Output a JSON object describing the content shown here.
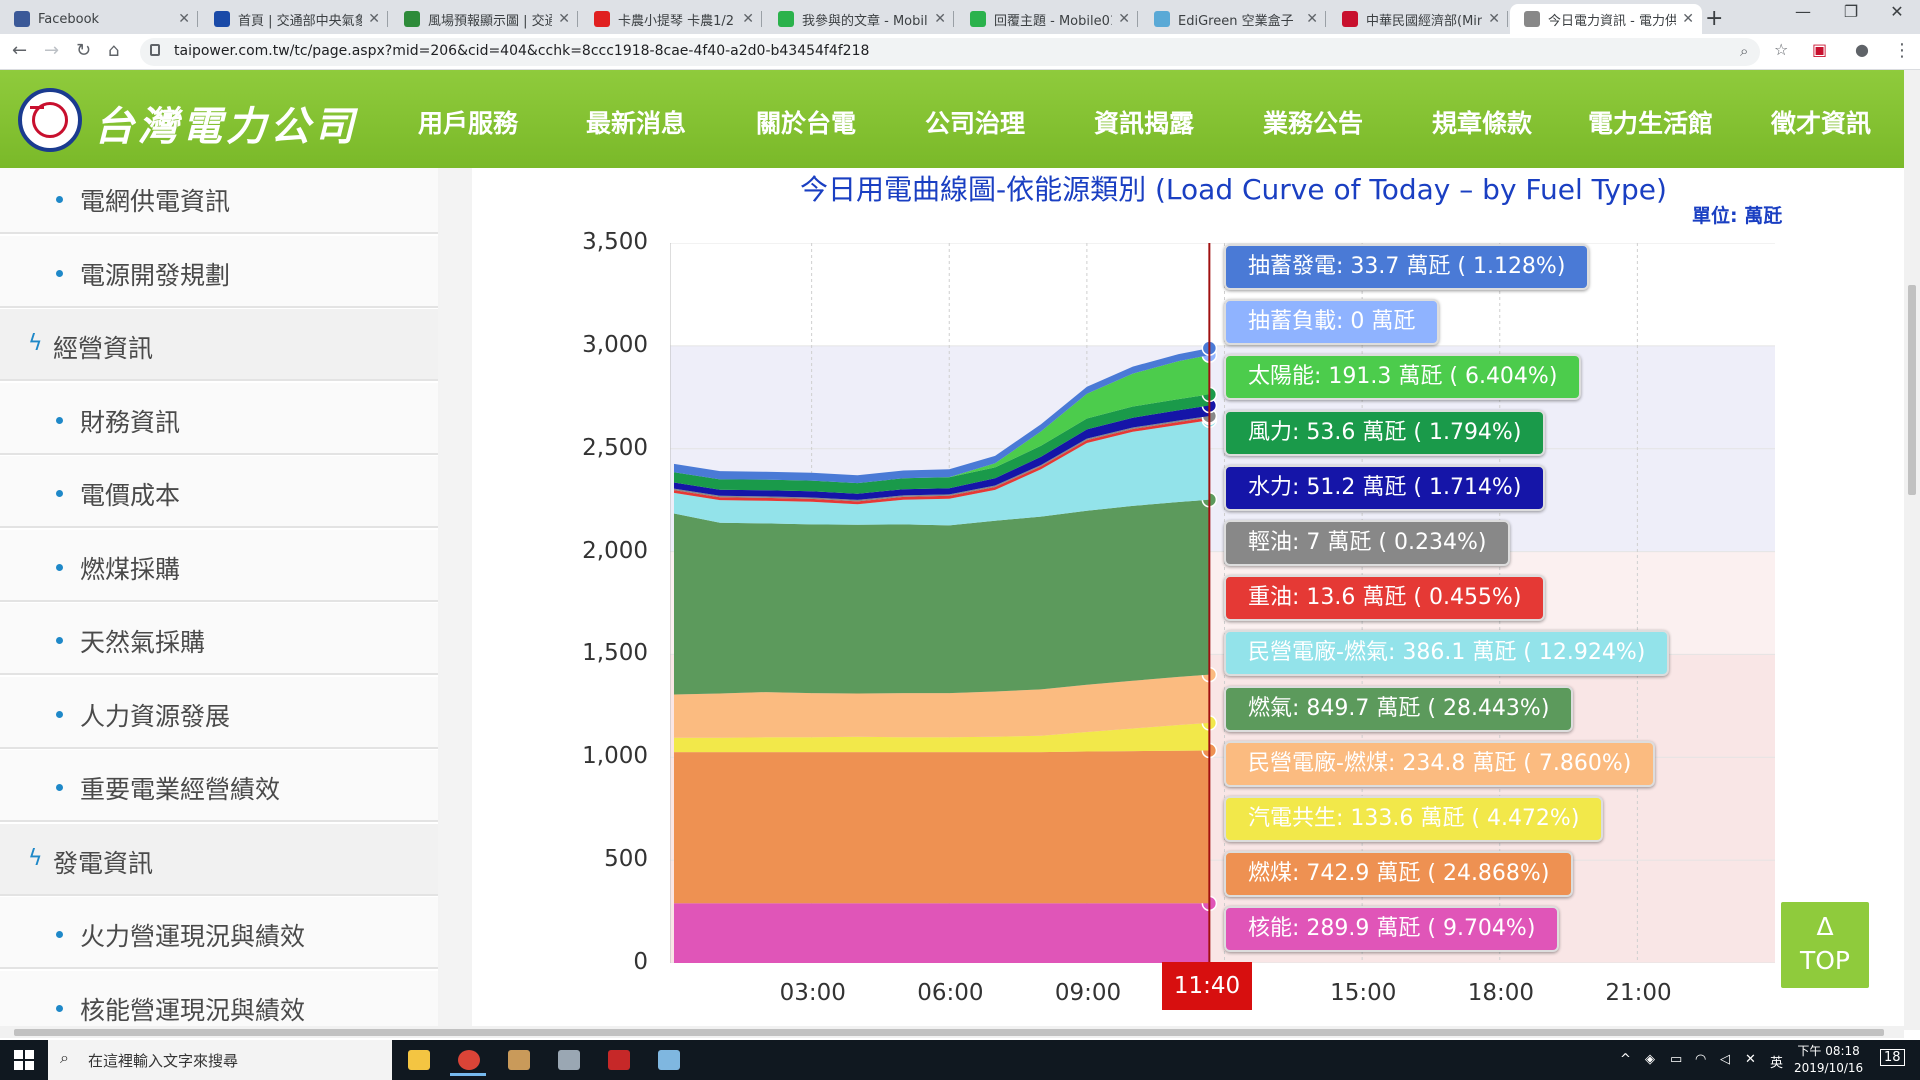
{
  "browser": {
    "tabs": [
      {
        "title": "Facebook",
        "color": "#3b5998",
        "active": false
      },
      {
        "title": "首頁 | 交通部中央氣象局",
        "color": "#1a4aa8",
        "active": false
      },
      {
        "title": "風場預報顯示圖 | 交通部",
        "color": "#2e8b3a",
        "active": false
      },
      {
        "title": "卡農小提琴 卡農1/2",
        "color": "#e02020",
        "active": false
      },
      {
        "title": "我參與的文章 - Mobile",
        "color": "#2bb24c",
        "active": false
      },
      {
        "title": "回覆主題 - Mobile01",
        "color": "#2bb24c",
        "active": false
      },
      {
        "title": "EdiGreen 空業盒子",
        "color": "#5aa9d6",
        "active": false
      },
      {
        "title": "中華民國經濟部(Minist",
        "color": "#c8102e",
        "active": false
      },
      {
        "title": "今日電力資訊 - 電力供",
        "color": "#888888",
        "active": true
      }
    ],
    "new_tab": "+",
    "url": "taipower.com.tw/tc/page.aspx?mid=206&cid=404&cchk=8ccc1918-8cae-4f40-a2d0-b43454f4f218"
  },
  "site": {
    "logo_text": "台灣電力公司",
    "nav": [
      "用戶服務",
      "最新消息",
      "關於台電",
      "公司治理",
      "資訊揭露",
      "業務公告",
      "規章條款",
      "電力生活館",
      "徵才資訊"
    ]
  },
  "sidebar": [
    {
      "label": "電網供電資訊",
      "type": "item"
    },
    {
      "label": "電源開發規劃",
      "type": "item"
    },
    {
      "label": "經營資訊",
      "type": "category"
    },
    {
      "label": "財務資訊",
      "type": "item"
    },
    {
      "label": "電價成本",
      "type": "item"
    },
    {
      "label": "燃煤採購",
      "type": "item"
    },
    {
      "label": "天然氣採購",
      "type": "item"
    },
    {
      "label": "人力資源發展",
      "type": "item"
    },
    {
      "label": "重要電業經營績效",
      "type": "item"
    },
    {
      "label": "發電資訊",
      "type": "category"
    },
    {
      "label": "火力營運現況與績效",
      "type": "item"
    },
    {
      "label": "核能營運現況與績效",
      "type": "item"
    }
  ],
  "chart_data": {
    "type": "area",
    "title": "今日用電曲線圖-依能源類別 (Load Curve of Today – by Fuel Type)",
    "unit_label": "單位: 萬瓩",
    "x_ticks": [
      "03:00",
      "06:00",
      "09:00",
      "15:00",
      "18:00",
      "21:00"
    ],
    "cursor_label": "11:40",
    "ylim": [
      0,
      3500
    ],
    "y_ticks": [
      "3,500",
      "3,000",
      "2,500",
      "2,000",
      "1,500",
      "1,000",
      "500",
      "0"
    ],
    "x_hours": [
      0,
      1,
      2,
      3,
      4,
      5,
      6,
      7,
      8,
      9,
      10,
      11,
      11.67
    ],
    "series": [
      {
        "name": "核能",
        "color": "#e055b8",
        "values": [
          290,
          290,
          290,
          290,
          290,
          290,
          290,
          290,
          290,
          290,
          290,
          290,
          290
        ],
        "tip": "核能: 289.9 萬瓩 ( 9.704%)",
        "text": "w"
      },
      {
        "name": "燃煤",
        "color": "#ee9152",
        "values": [
          735,
          735,
          735,
          735,
          735,
          735,
          735,
          735,
          735,
          738,
          740,
          742,
          743
        ],
        "tip": "燃煤: 742.9 萬瓩 ( 24.868%)",
        "text": "w"
      },
      {
        "name": "汽電共生",
        "color": "#f2e84a",
        "values": [
          70,
          70,
          72,
          72,
          75,
          72,
          72,
          75,
          80,
          95,
          110,
          125,
          134
        ],
        "tip": "汽電共生: 133.6 萬瓩 ( 4.472%)",
        "text": "w"
      },
      {
        "name": "民營電廠-燃煤",
        "color": "#fbbb80",
        "values": [
          210,
          215,
          220,
          215,
          210,
          215,
          215,
          220,
          225,
          230,
          232,
          234,
          235
        ],
        "tip": "民營電廠-燃煤: 234.8 萬瓩 ( 7.860%)",
        "text": "w"
      },
      {
        "name": "燃氣",
        "color": "#5c9a5c",
        "values": [
          880,
          830,
          820,
          820,
          820,
          820,
          815,
          830,
          840,
          845,
          850,
          850,
          850
        ],
        "tip": "燃氣: 849.7 萬瓩 ( 28.443%)",
        "text": "w"
      },
      {
        "name": "民營電廠-燃氣",
        "color": "#93e3ea",
        "values": [
          100,
          110,
          110,
          110,
          100,
          120,
          130,
          150,
          230,
          330,
          360,
          375,
          386
        ],
        "tip": "民營電廠-燃氣: 386.1 萬瓩 ( 12.924%)",
        "text": "w"
      },
      {
        "name": "重油",
        "color": "#e53935",
        "values": [
          14,
          14,
          14,
          14,
          14,
          14,
          14,
          14,
          14,
          14,
          14,
          14,
          14
        ],
        "tip": "重油: 13.6 萬瓩 ( 0.455%)",
        "text": "w"
      },
      {
        "name": "輕油",
        "color": "#888888",
        "values": [
          7,
          7,
          7,
          7,
          7,
          7,
          7,
          7,
          7,
          7,
          7,
          7,
          7
        ],
        "tip": "輕油: 7 萬瓩 ( 0.234%)",
        "text": "w"
      },
      {
        "name": "水力",
        "color": "#1515a8",
        "values": [
          30,
          30,
          30,
          30,
          30,
          30,
          30,
          35,
          40,
          45,
          48,
          50,
          51
        ],
        "tip": "水力: 51.2 萬瓩 ( 1.714%)",
        "text": "w"
      },
      {
        "name": "風力",
        "color": "#1a9a4a",
        "values": [
          50,
          50,
          52,
          52,
          52,
          53,
          53,
          53,
          53,
          53,
          54,
          54,
          54
        ],
        "tip": "風力: 53.6 萬瓩 ( 1.794%)",
        "text": "w"
      },
      {
        "name": "太陽能",
        "color": "#4ccc4c",
        "values": [
          0,
          0,
          0,
          0,
          0,
          0,
          1,
          20,
          70,
          120,
          160,
          185,
          191
        ],
        "tip": "太陽能: 191.3 萬瓩 ( 6.404%)",
        "text": "w"
      },
      {
        "name": "抽蓄負載",
        "color": "#8fb3ff",
        "values": [
          0,
          0,
          0,
          0,
          0,
          0,
          0,
          0,
          0,
          0,
          0,
          0,
          0
        ],
        "tip": "抽蓄負載: 0 萬瓩",
        "text": "w"
      },
      {
        "name": "抽蓄發電",
        "color": "#4a7ad6",
        "values": [
          40,
          40,
          38,
          38,
          38,
          38,
          38,
          36,
          35,
          34,
          34,
          34,
          34
        ],
        "tip": "抽蓄發電: 33.7 萬瓩 ( 1.128%)",
        "text": "w"
      }
    ]
  },
  "top_button": {
    "arrow": "Δ",
    "label": "TOP"
  },
  "taskbar": {
    "search_placeholder": "在這裡輸入文字來搜尋",
    "time": "下午 08:18",
    "date": "2019/10/16",
    "notification_count": "18"
  }
}
